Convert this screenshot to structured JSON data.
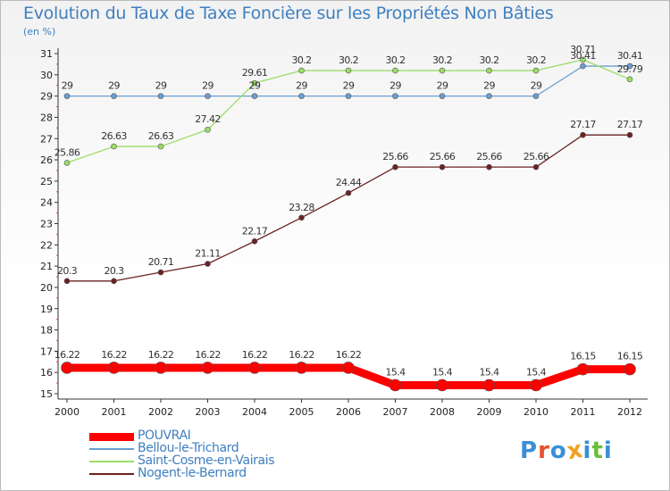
{
  "header": {
    "title": "Evolution du Taux de Taxe Foncière sur les Propriétés Non Bâties",
    "unit": "(en %)"
  },
  "logo": {
    "text": "Proxiti",
    "letters": [
      "P",
      "r",
      "o",
      "x",
      "i",
      "t",
      "i"
    ],
    "colors": [
      "#3a8fd6",
      "#e8502a",
      "#3a8fd6",
      "#f0a020",
      "#3a8fd6",
      "#6cbf3c",
      "#3a8fd6"
    ]
  },
  "chart_data": {
    "type": "line",
    "x": [
      "2000",
      "2001",
      "2002",
      "2003",
      "2004",
      "2005",
      "2006",
      "2007",
      "2008",
      "2009",
      "2010",
      "2011",
      "2012"
    ],
    "ylim": [
      15,
      31
    ],
    "yticks": [
      "15",
      "16",
      "17",
      "18",
      "19",
      "20",
      "21",
      "22",
      "23",
      "24",
      "25",
      "26",
      "27",
      "28",
      "29",
      "30",
      "31"
    ],
    "grid": false,
    "legend_position": "bottom-left",
    "series": [
      {
        "name": "POUVRAI",
        "color": "#ff0000",
        "values": [
          16.22,
          16.22,
          16.22,
          16.22,
          16.22,
          16.22,
          16.22,
          15.4,
          15.4,
          15.4,
          15.4,
          16.15,
          16.15
        ],
        "labels": [
          "16.22",
          "16.22",
          "16.22",
          "16.22",
          "16.22",
          "16.22",
          "16.22",
          "15.4",
          "15.4",
          "15.4",
          "15.4",
          "16.15",
          "16.15"
        ]
      },
      {
        "name": "Bellou-le-Trichard",
        "color": "#6a9fd0",
        "values": [
          29,
          29,
          29,
          29,
          29,
          29,
          29,
          29,
          29,
          29,
          29,
          30.41,
          30.41
        ],
        "labels": [
          "29",
          "29",
          "29",
          "29",
          "29",
          "29",
          "29",
          "29",
          "29",
          "29",
          "29",
          "30.41",
          "30.41"
        ]
      },
      {
        "name": "Saint-Cosme-en-Vairais",
        "color": "#99dd66",
        "values": [
          25.86,
          26.63,
          26.63,
          27.42,
          29.61,
          30.2,
          30.2,
          30.2,
          30.2,
          30.2,
          30.2,
          30.71,
          29.79
        ],
        "labels": [
          "25.86",
          "26.63",
          "26.63",
          "27.42",
          "29.61",
          "30.2",
          "30.2",
          "30.2",
          "30.2",
          "30.2",
          "30.2",
          "30.71",
          "29.79"
        ]
      },
      {
        "name": "Nogent-le-Bernard",
        "color": "#6b2222",
        "values": [
          20.3,
          20.3,
          20.71,
          21.11,
          22.17,
          23.28,
          24.44,
          25.66,
          25.66,
          25.66,
          25.66,
          27.17,
          27.17
        ],
        "labels": [
          "20.3",
          "20.3",
          "20.71",
          "21.11",
          "22.17",
          "23.28",
          "24.44",
          "25.66",
          "25.66",
          "25.66",
          "25.66",
          "27.17",
          "27.17"
        ]
      }
    ]
  }
}
